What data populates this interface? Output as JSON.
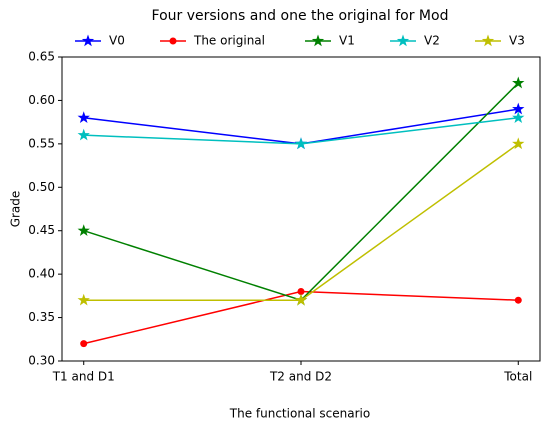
{
  "chart_data": {
    "type": "line",
    "title": "Four versions and one the original for Mod",
    "x_label": "The functional scenario",
    "y_label": "Grade",
    "categories": [
      "T1 and D1",
      "T2 and D2",
      "Total"
    ],
    "series": [
      {
        "name": "V0",
        "color": "#0000ff",
        "marker": "star",
        "values": [
          0.58,
          0.55,
          0.59
        ]
      },
      {
        "name": "The original",
        "color": "#ff0000",
        "marker": "circle",
        "values": [
          0.32,
          0.38,
          0.37
        ]
      },
      {
        "name": "V1",
        "color": "#008000",
        "marker": "star",
        "values": [
          0.45,
          0.37,
          0.62
        ]
      },
      {
        "name": "V2",
        "color": "#00bfbf",
        "marker": "star",
        "values": [
          0.56,
          0.55,
          0.58
        ]
      },
      {
        "name": "V3",
        "color": "#bfbf00",
        "marker": "star",
        "values": [
          0.37,
          0.37,
          0.55
        ]
      }
    ],
    "ylim": [
      0.3,
      0.65
    ],
    "yticks": [
      {
        "value": 0.3,
        "label": "0.30"
      },
      0.35,
      {
        "value": 0.4,
        "label": "0.40"
      },
      0.45,
      {
        "value": 0.5,
        "label": "0.50"
      },
      0.55,
      {
        "value": 0.6,
        "label": "0.60"
      },
      0.65
    ],
    "legend": "top"
  }
}
